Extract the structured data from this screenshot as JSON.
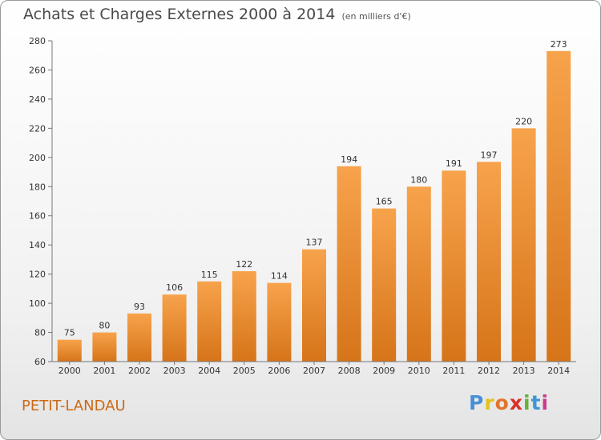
{
  "header": {
    "title": "Achats et Charges Externes 2000 à 2014",
    "subtitle": "(en milliers d'€)"
  },
  "footer": {
    "place": "PETIT-LANDAU",
    "logo": "Proxiti",
    "logo_colors": [
      "#4a8fd6",
      "#e2c21c",
      "#e2742a",
      "#d9302a",
      "#62b33b",
      "#3f96d8",
      "#c83c8c"
    ]
  },
  "chart_data": {
    "type": "bar",
    "title": "Achats et Charges Externes 2000 à 2014",
    "subtitle": "(en milliers d'€)",
    "xlabel": "",
    "ylabel": "",
    "categories": [
      "2000",
      "2001",
      "2002",
      "2003",
      "2004",
      "2005",
      "2006",
      "2007",
      "2008",
      "2009",
      "2010",
      "2011",
      "2012",
      "2013",
      "2014"
    ],
    "values": [
      75,
      80,
      93,
      106,
      115,
      122,
      114,
      137,
      194,
      165,
      180,
      191,
      197,
      220,
      273
    ],
    "ylim": [
      60,
      280
    ],
    "yticks": [
      60,
      80,
      100,
      120,
      140,
      160,
      180,
      200,
      220,
      240,
      260,
      280
    ],
    "grid": false,
    "bar_color_top": "#f7a34c",
    "bar_color_bottom": "#d67419"
  }
}
